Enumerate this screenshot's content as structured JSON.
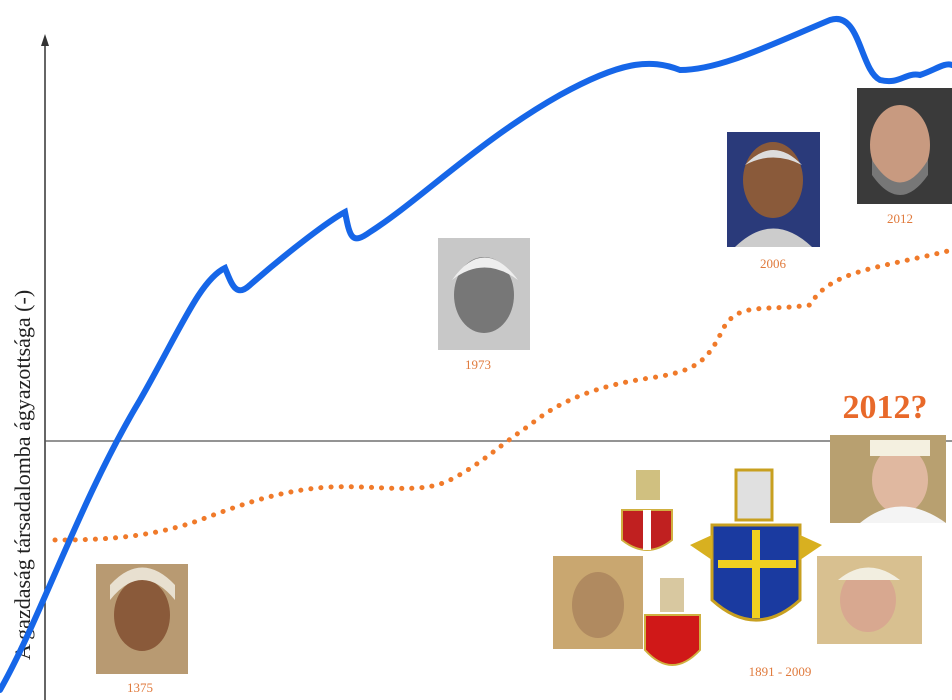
{
  "axis_label": "A gazdaság társadalomba ágyazottsága (-)",
  "captions": [
    "1375",
    "1973",
    "2006",
    "2012",
    "1891 - 2009"
  ],
  "highlight": "2012?"
}
